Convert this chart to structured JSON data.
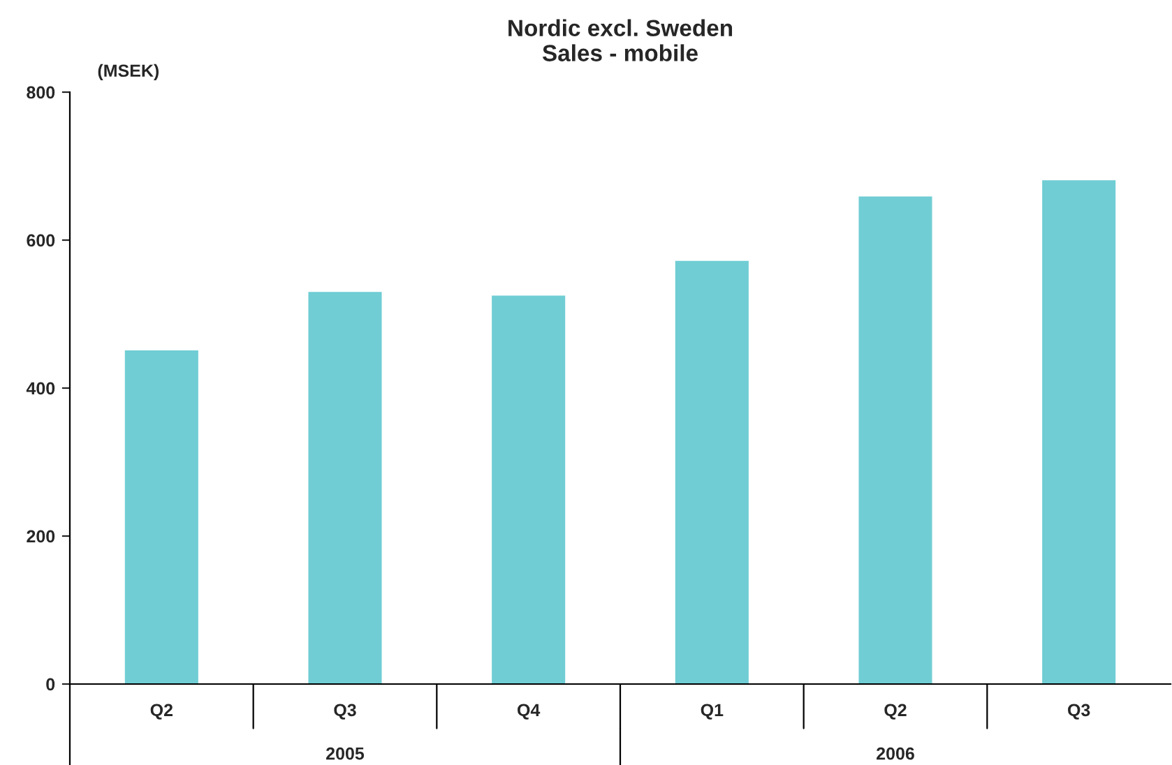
{
  "chart_data": {
    "type": "bar",
    "title": "Nordic excl. Sweden\nSales - mobile",
    "ylabel": "(MSEK)",
    "categories": [
      "Q2",
      "Q3",
      "Q4",
      "Q1",
      "Q2",
      "Q3"
    ],
    "values": [
      451,
      530,
      525,
      572,
      659,
      681
    ],
    "color": "#70cdd4",
    "ylim": [
      0,
      800
    ],
    "yticks": [
      0,
      200,
      400,
      600,
      800
    ],
    "grid": false,
    "legend": false,
    "annotations": [
      "2005",
      "2006"
    ]
  }
}
